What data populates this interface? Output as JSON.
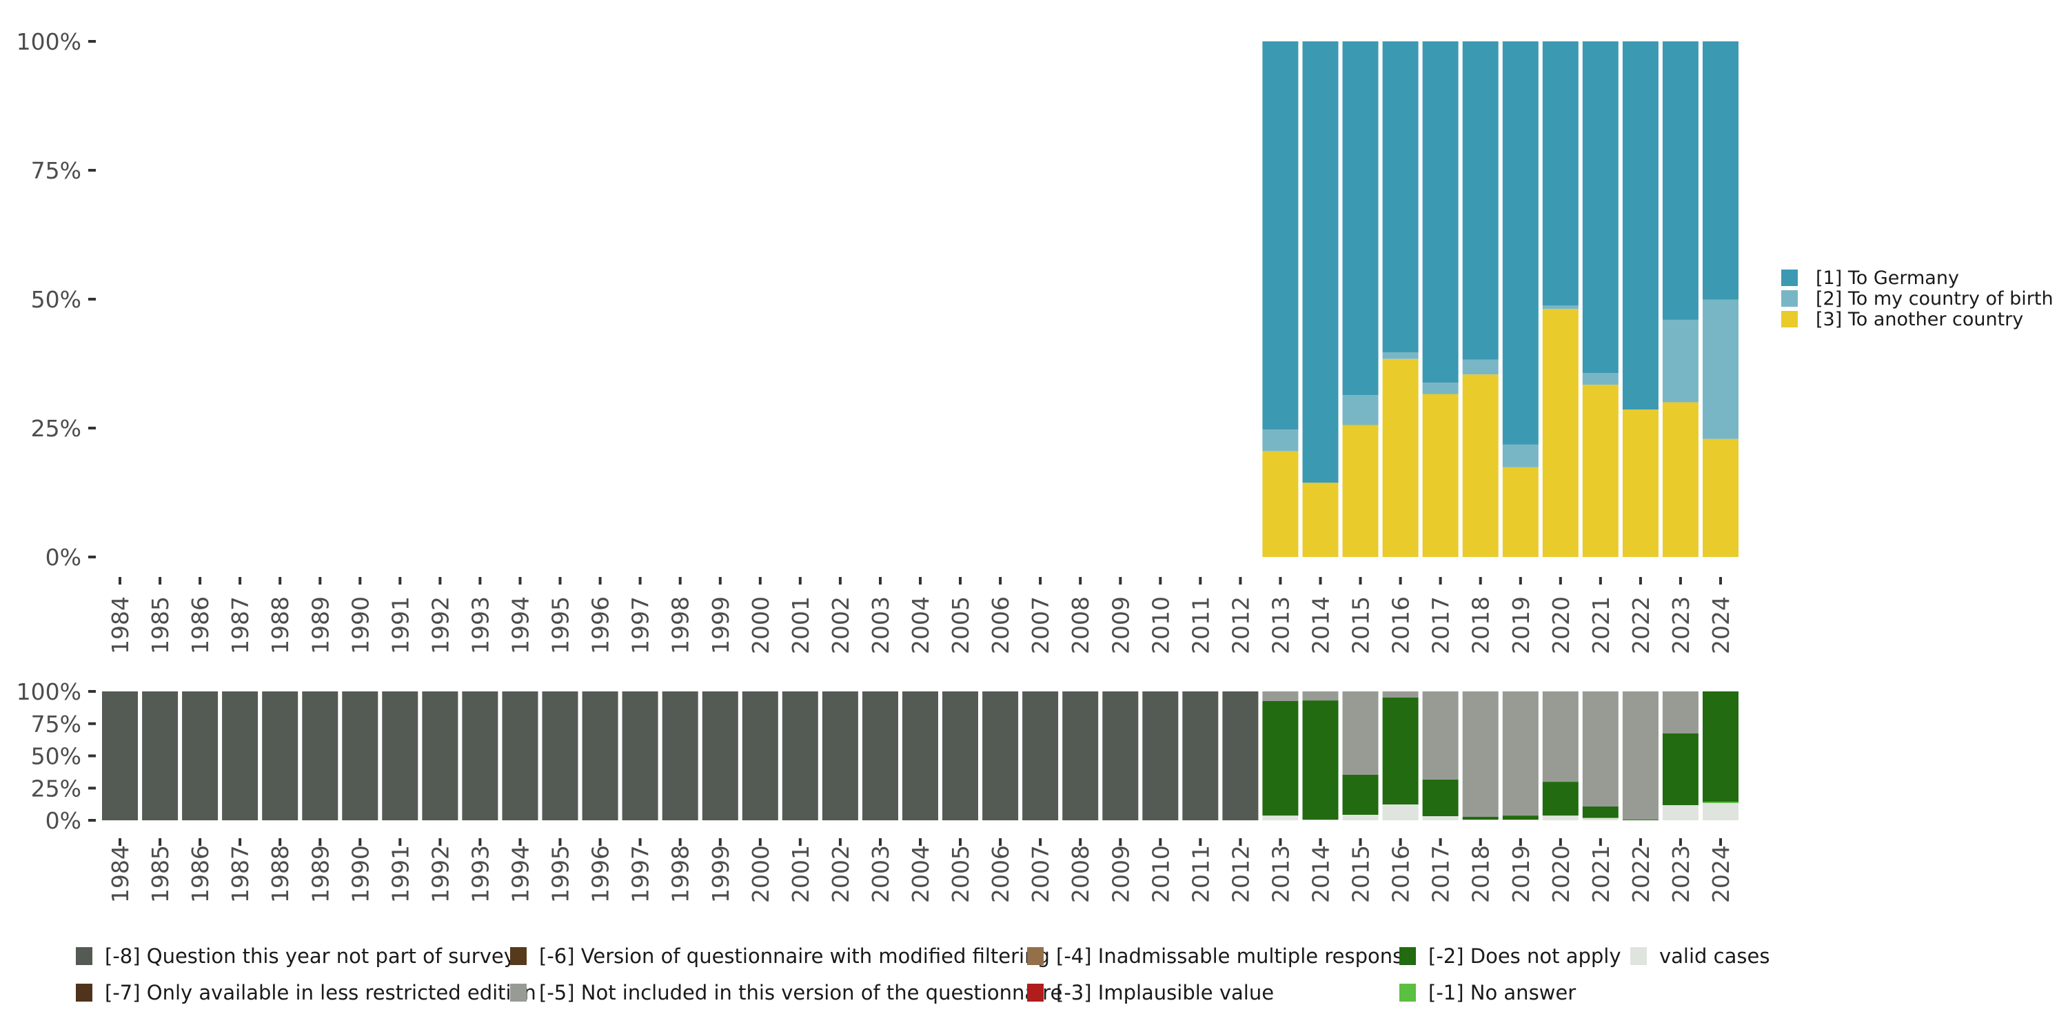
{
  "chart_data": [
    {
      "type": "bar",
      "stacked": true,
      "title": "",
      "xlabel": "",
      "ylabel": "",
      "ylim": [
        0,
        100
      ],
      "yticks": [
        "0%",
        "25%",
        "50%",
        "75%",
        "100%"
      ],
      "categories": [
        "1984",
        "1985",
        "1986",
        "1987",
        "1988",
        "1989",
        "1990",
        "1991",
        "1992",
        "1993",
        "1994",
        "1995",
        "1996",
        "1997",
        "1998",
        "1999",
        "2000",
        "2001",
        "2002",
        "2003",
        "2004",
        "2005",
        "2006",
        "2007",
        "2008",
        "2009",
        "2010",
        "2011",
        "2012",
        "2013",
        "2014",
        "2015",
        "2016",
        "2017",
        "2018",
        "2019",
        "2020",
        "2021",
        "2022",
        "2023",
        "2024"
      ],
      "legend_position": "right",
      "series": [
        {
          "name": "[3] To another country",
          "color": "#e9cb2c",
          "values": [
            null,
            null,
            null,
            null,
            null,
            null,
            null,
            null,
            null,
            null,
            null,
            null,
            null,
            null,
            null,
            null,
            null,
            null,
            null,
            null,
            null,
            null,
            null,
            null,
            null,
            null,
            null,
            null,
            null,
            20.5,
            14.4,
            25.6,
            38.4,
            31.6,
            35.4,
            17.4,
            48.1,
            33.4,
            28.6,
            30.0,
            22.9
          ]
        },
        {
          "name": "[2] To my country of birth",
          "color": "#79b6c5",
          "values": [
            null,
            null,
            null,
            null,
            null,
            null,
            null,
            null,
            null,
            null,
            null,
            null,
            null,
            null,
            null,
            null,
            null,
            null,
            null,
            null,
            null,
            null,
            null,
            null,
            null,
            null,
            null,
            null,
            null,
            4.2,
            0.0,
            5.8,
            1.3,
            2.2,
            2.9,
            4.4,
            0.7,
            2.3,
            0.0,
            16.0,
            27.0
          ]
        },
        {
          "name": "[1] To Germany",
          "color": "#3c99b2",
          "values": [
            null,
            null,
            null,
            null,
            null,
            null,
            null,
            null,
            null,
            null,
            null,
            null,
            null,
            null,
            null,
            null,
            null,
            null,
            null,
            null,
            null,
            null,
            null,
            null,
            null,
            null,
            null,
            null,
            null,
            75.3,
            85.6,
            68.6,
            60.3,
            66.2,
            61.7,
            78.2,
            51.2,
            64.3,
            71.4,
            54.0,
            50.1
          ]
        }
      ],
      "legend": [
        {
          "label": "[1] To Germany",
          "color": "#3c99b2"
        },
        {
          "label": "[2] To my country of birth",
          "color": "#79b6c5"
        },
        {
          "label": "[3] To another country",
          "color": "#e9cb2c"
        }
      ]
    },
    {
      "type": "bar",
      "stacked": true,
      "title": "",
      "xlabel": "",
      "ylabel": "",
      "ylim": [
        0,
        100
      ],
      "yticks": [
        "0%",
        "25%",
        "50%",
        "75%",
        "100%"
      ],
      "categories": [
        "1984",
        "1985",
        "1986",
        "1987",
        "1988",
        "1989",
        "1990",
        "1991",
        "1992",
        "1993",
        "1994",
        "1995",
        "1996",
        "1997",
        "1998",
        "1999",
        "2000",
        "2001",
        "2002",
        "2003",
        "2004",
        "2005",
        "2006",
        "2007",
        "2008",
        "2009",
        "2010",
        "2011",
        "2012",
        "2013",
        "2014",
        "2015",
        "2016",
        "2017",
        "2018",
        "2019",
        "2020",
        "2021",
        "2022",
        "2023",
        "2024"
      ],
      "legend_position": "bottom",
      "series": [
        {
          "name": "valid cases",
          "color": "#e0e4df",
          "values": [
            0,
            0,
            0,
            0,
            0,
            0,
            0,
            0,
            0,
            0,
            0,
            0,
            0,
            0,
            0,
            0,
            0,
            0,
            0,
            0,
            0,
            0,
            0,
            0,
            0,
            0,
            0,
            0,
            0,
            3.7,
            0.5,
            4.3,
            12.3,
            3.2,
            0.5,
            0.5,
            3.7,
            1.6,
            0.0,
            11.8,
            13.4
          ]
        },
        {
          "name": "[-1] No answer",
          "color": "#5bbf41",
          "values": [
            0,
            0,
            0,
            0,
            0,
            0,
            0,
            0,
            0,
            0,
            0,
            0,
            0,
            0,
            0,
            0,
            0,
            0,
            0,
            0,
            0,
            0,
            0,
            0,
            0,
            0,
            0,
            0,
            0,
            0,
            0,
            0,
            0,
            0,
            0,
            0,
            0,
            0.5,
            0,
            0,
            1.0
          ]
        },
        {
          "name": "[-2] Does not apply",
          "color": "#226b10",
          "values": [
            0,
            0,
            0,
            0,
            0,
            0,
            0,
            0,
            0,
            0,
            0,
            0,
            0,
            0,
            0,
            0,
            0,
            0,
            0,
            0,
            0,
            0,
            0,
            0,
            0,
            0,
            0,
            0,
            0,
            88.8,
            92.5,
            31.0,
            82.9,
            28.4,
            2.2,
            3.2,
            26.2,
            8.6,
            0.5,
            55.6,
            85.6
          ]
        },
        {
          "name": "[-5] Not included in this version of the questionnaire",
          "color": "#979b94",
          "values": [
            0,
            0,
            0,
            0,
            0,
            0,
            0,
            0,
            0,
            0,
            0,
            0,
            0,
            0,
            0,
            0,
            0,
            0,
            0,
            0,
            0,
            0,
            0,
            0,
            0,
            0,
            0,
            0,
            0,
            7.5,
            7.0,
            64.7,
            4.8,
            68.4,
            97.3,
            96.3,
            70.1,
            89.3,
            99.5,
            32.6,
            0.0
          ]
        },
        {
          "name": "[-8] Question this year not part of survey",
          "color": "#545a54",
          "values": [
            100,
            100,
            100,
            100,
            100,
            100,
            100,
            100,
            100,
            100,
            100,
            100,
            100,
            100,
            100,
            100,
            100,
            100,
            100,
            100,
            100,
            100,
            100,
            100,
            100,
            100,
            100,
            100,
            100,
            0,
            0,
            0,
            0,
            0,
            0,
            0,
            0,
            0,
            0,
            0,
            0
          ]
        }
      ],
      "legend": [
        {
          "label": "[-8] Question this year not part of survey",
          "color": "#545a54"
        },
        {
          "label": "[-7] Only available in less restricted edition",
          "color": "#4f331b"
        },
        {
          "label": "[-6] Version of questionnaire with modified filtering",
          "color": "#57391c"
        },
        {
          "label": "[-5] Not included in this version of the questionnaire",
          "color": "#979b94"
        },
        {
          "label": "[-4] Inadmissable multiple response",
          "color": "#93704a"
        },
        {
          "label": "[-3] Implausible value",
          "color": "#b01d1a"
        },
        {
          "label": "[-2] Does not apply",
          "color": "#226b10"
        },
        {
          "label": "[-1] No answer",
          "color": "#5bbf41"
        },
        {
          "label": "valid cases",
          "color": "#e0e4df"
        }
      ]
    }
  ]
}
